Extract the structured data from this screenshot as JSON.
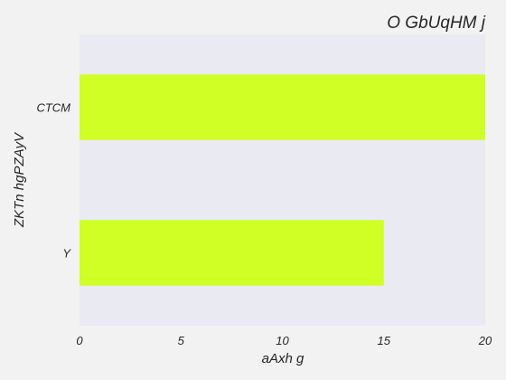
{
  "chart_data": {
    "type": "bar",
    "orientation": "horizontal",
    "title": "O GbUqHM  j",
    "xlabel": "aAxh g",
    "ylabel": "ZKTn hgPZAyV",
    "categories": [
      "CTCM",
      "Y"
    ],
    "values": [
      20,
      15
    ],
    "xlim": [
      0,
      20
    ],
    "xticks": [
      0,
      5,
      10,
      15,
      20
    ],
    "grid": false,
    "legend": "none",
    "colors": {
      "bar": "#cfff24",
      "plot_background": "#eaeaf2",
      "page_background": "#f2f2f2",
      "text": "#262626"
    }
  }
}
